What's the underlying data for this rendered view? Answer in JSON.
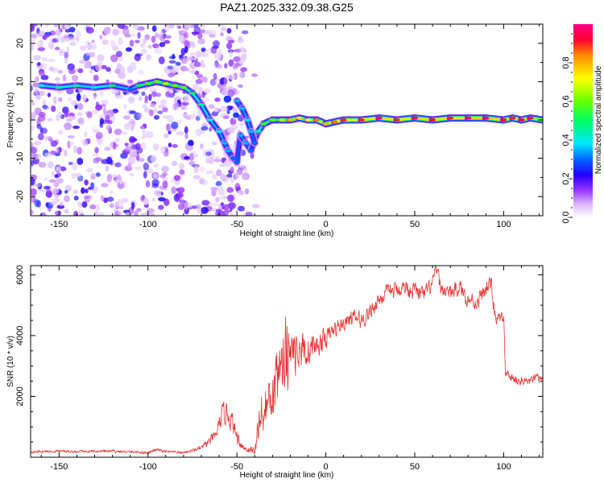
{
  "title": "PAZ1.2025.332.09.38.G25",
  "colors": {
    "snr_line": "#e83232",
    "colormap": [
      "#ffffff",
      "#d9b3ff",
      "#9933ff",
      "#2200ff",
      "#0066ff",
      "#00e5ff",
      "#00ff66",
      "#66ff00",
      "#ffff00",
      "#ff8800",
      "#ff0033",
      "#ff0088"
    ]
  },
  "chart_data": [
    {
      "type": "heatmap",
      "name": "spectrogram",
      "xlabel": "Height of straight line (km)",
      "ylabel": "Frequency (Hz)",
      "xlim": [
        -166,
        122
      ],
      "ylim": [
        -25,
        25
      ],
      "xticks": [
        -150,
        -100,
        -50,
        0,
        50,
        100
      ],
      "xtick_labels": [
        "-150",
        "-100",
        "-50",
        "0",
        "50",
        "100"
      ],
      "yticks": [
        -20,
        -10,
        0,
        10,
        20
      ],
      "ytick_labels": [
        "-20",
        "-10",
        "0",
        "10",
        "20"
      ],
      "colorbar": {
        "label": "Normalized spectral amplitude",
        "range": [
          0,
          1
        ],
        "ticks": [
          0.0,
          0.2,
          0.4,
          0.6,
          0.8
        ],
        "tick_labels": [
          "0.0",
          "0.2",
          "0.4",
          "0.6",
          "0.8"
        ]
      },
      "ridge": {
        "height_km": [
          -160,
          -150,
          -140,
          -130,
          -120,
          -110,
          -105,
          -100,
          -95,
          -90,
          -85,
          -80,
          -75,
          -70,
          -65,
          -60,
          -57,
          -55,
          -52,
          -50,
          -48,
          -45,
          -42,
          -40,
          -38,
          -35,
          -30,
          -25,
          -20,
          -15,
          -10,
          -5,
          0,
          5,
          10,
          20,
          30,
          40,
          50,
          60,
          70,
          80,
          90,
          100,
          105,
          110,
          115,
          122
        ],
        "frequency_hz": [
          9,
          8.5,
          9,
          8.5,
          9,
          8,
          9,
          9.5,
          10,
          9.5,
          9,
          8.5,
          7,
          4,
          0,
          -3,
          -6,
          -8,
          -10,
          -11,
          -4,
          -6,
          -8,
          -5,
          -3,
          -1,
          0,
          0,
          0,
          0.5,
          0,
          0,
          -1,
          -0.5,
          0,
          0,
          0.5,
          0,
          0.5,
          0,
          0.5,
          0.5,
          0.5,
          0,
          0.5,
          0,
          0.5,
          0
        ],
        "amplitude": [
          0.4,
          0.45,
          0.45,
          0.4,
          0.5,
          0.3,
          0.5,
          0.55,
          0.6,
          0.65,
          0.6,
          0.6,
          0.5,
          0.45,
          0.4,
          0.4,
          0.35,
          0.35,
          0.3,
          0.3,
          0.35,
          0.35,
          0.3,
          0.3,
          0.45,
          0.55,
          0.6,
          0.65,
          0.8,
          0.75,
          0.7,
          0.85,
          0.8,
          0.85,
          0.9,
          0.9,
          0.95,
          0.9,
          0.95,
          0.95,
          0.9,
          0.95,
          0.95,
          0.95,
          0.9,
          0.95,
          0.95,
          0.6
        ]
      },
      "branch": {
        "height_km": [
          -50,
          -47,
          -44,
          -42,
          -40
        ],
        "frequency_hz": [
          5,
          3,
          0,
          -3,
          -6
        ],
        "amplitude": [
          0.35,
          0.35,
          0.4,
          0.35,
          0.3
        ]
      },
      "noise_region_km": [
        -166,
        -45
      ]
    },
    {
      "type": "line",
      "name": "snr",
      "xlabel": "Height of straight line (km)",
      "ylabel": "SNR (10 * v/v)",
      "xlim": [
        -166,
        122
      ],
      "ylim": [
        0,
        6300
      ],
      "xticks": [
        -150,
        -100,
        -50,
        0,
        50,
        100
      ],
      "xtick_labels": [
        "-150",
        "-100",
        "-50",
        "0",
        "50",
        "100"
      ],
      "yticks": [
        2000,
        4000,
        6000
      ],
      "ytick_labels": [
        "2000",
        "4000",
        "6000"
      ],
      "series": [
        {
          "name": "SNR",
          "x": [
            -166,
            -150,
            -140,
            -120,
            -100,
            -95,
            -90,
            -80,
            -70,
            -62,
            -58,
            -55,
            -52,
            -50,
            -46,
            -40,
            -38,
            -35,
            -30,
            -25,
            -22,
            -20,
            -18,
            -15,
            -10,
            -5,
            0,
            5,
            10,
            15,
            20,
            25,
            30,
            35,
            40,
            45,
            50,
            55,
            60,
            62,
            65,
            70,
            75,
            80,
            85,
            90,
            93,
            95,
            98,
            100,
            101,
            105,
            110,
            115,
            122
          ],
          "y": [
            180,
            200,
            180,
            200,
            150,
            250,
            180,
            150,
            300,
            700,
            1400,
            1500,
            1000,
            700,
            300,
            200,
            900,
            1700,
            2200,
            2700,
            3200,
            3000,
            3400,
            3600,
            3500,
            3700,
            3900,
            4200,
            4400,
            4600,
            4500,
            4800,
            5200,
            5400,
            5500,
            5600,
            5500,
            5300,
            5700,
            6200,
            5500,
            5400,
            5600,
            5200,
            5100,
            5500,
            5700,
            4700,
            4500,
            4600,
            2700,
            2600,
            2500,
            2500,
            2600
          ],
          "noise_amplitude": [
            60,
            60,
            60,
            60,
            60,
            60,
            60,
            60,
            100,
            300,
            500,
            600,
            500,
            400,
            200,
            200,
            800,
            1400,
            1400,
            1400,
            2200,
            1600,
            1200,
            1000,
            800,
            600,
            500,
            400,
            400,
            400,
            400,
            400,
            400,
            400,
            400,
            400,
            400,
            400,
            400,
            400,
            400,
            400,
            400,
            400,
            400,
            400,
            400,
            400,
            300,
            300,
            250,
            250,
            250,
            250,
            250
          ]
        }
      ]
    }
  ]
}
